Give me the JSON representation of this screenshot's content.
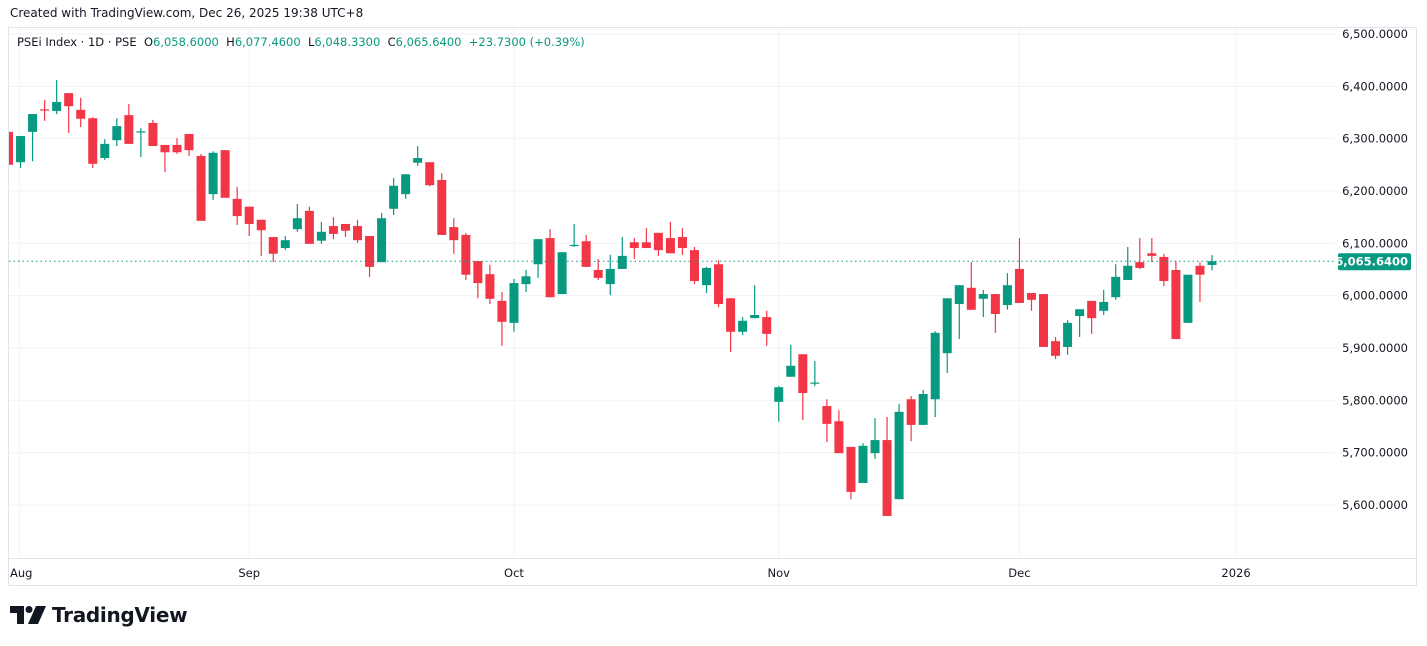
{
  "header": {
    "created": "Created with TradingView.com, Dec 26, 2025 19:38 UTC+8"
  },
  "legend": {
    "symbol": "PSEi Index · 1D · PSE",
    "open_label": "O",
    "open": "6,058.6000",
    "high_label": "H",
    "high": "6,077.4600",
    "low_label": "L",
    "low": "6,048.3300",
    "close_label": "C",
    "close": "6,065.6400",
    "change": "+23.7300 (+0.39%)"
  },
  "logo": {
    "text": "TradingView"
  },
  "colors": {
    "up": "#089981",
    "down": "#f23645",
    "grid": "#f0f3fa",
    "last_price": "#089981"
  },
  "chart_data": {
    "type": "candlestick",
    "title": "PSEi Index · 1D · PSE",
    "ylim": [
      5550,
      6510
    ],
    "y_ticks": [
      6500,
      6400,
      6300,
      6200,
      6100,
      6000,
      5900,
      5800,
      5700,
      5600
    ],
    "y_tick_labels": [
      "6,500.0000",
      "6,400.0000",
      "6,300.0000",
      "6,200.0000",
      "6,100.0000",
      "6,000.0000",
      "5,900.0000",
      "5,800.0000",
      "5,700.0000",
      "5,600.0000"
    ],
    "x_tick_labels": [
      {
        "label": "Aug",
        "index": 1
      },
      {
        "label": "Sep",
        "index": 20
      },
      {
        "label": "Oct",
        "index": 42
      },
      {
        "label": "Nov",
        "index": 64
      },
      {
        "label": "Dec",
        "index": 84
      },
      {
        "label": "2026",
        "index": 102
      }
    ],
    "last_price": 6065.64,
    "last_price_label": "6,065.6400",
    "ohlc": [
      [
        6313,
        6316,
        6248,
        6250
      ],
      [
        6255,
        6305,
        6244,
        6305
      ],
      [
        6313,
        6347,
        6257,
        6347
      ],
      [
        6356,
        6374,
        6334,
        6354
      ],
      [
        6353,
        6412,
        6347,
        6370
      ],
      [
        6387,
        6387,
        6311,
        6362
      ],
      [
        6355,
        6378,
        6322,
        6338
      ],
      [
        6339,
        6341,
        6244,
        6252
      ],
      [
        6263,
        6299,
        6259,
        6290
      ],
      [
        6297,
        6339,
        6286,
        6324
      ],
      [
        6345,
        6366,
        6290,
        6290
      ],
      [
        6312,
        6320,
        6265,
        6314
      ],
      [
        6330,
        6336,
        6286,
        6286
      ],
      [
        6288,
        6288,
        6236,
        6274
      ],
      [
        6288,
        6301,
        6271,
        6274
      ],
      [
        6309,
        6309,
        6267,
        6278
      ],
      [
        6267,
        6271,
        6143,
        6143
      ],
      [
        6194,
        6276,
        6183,
        6273
      ],
      [
        6278,
        6278,
        6187,
        6187
      ],
      [
        6185,
        6208,
        6135,
        6152
      ],
      [
        6170,
        6170,
        6114,
        6137
      ],
      [
        6145,
        6145,
        6076,
        6125
      ],
      [
        6112,
        6112,
        6064,
        6080
      ],
      [
        6091,
        6114,
        6087,
        6106
      ],
      [
        6127,
        6175,
        6122,
        6148
      ],
      [
        6162,
        6170,
        6099,
        6099
      ],
      [
        6105,
        6141,
        6099,
        6122
      ],
      [
        6133,
        6150,
        6108,
        6118
      ],
      [
        6137,
        6137,
        6112,
        6124
      ],
      [
        6133,
        6145,
        6101,
        6106
      ],
      [
        6114,
        6114,
        6036,
        6055
      ],
      [
        6064,
        6158,
        6064,
        6148
      ],
      [
        6166,
        6225,
        6154,
        6210
      ],
      [
        6194,
        6232,
        6185,
        6232
      ],
      [
        6254,
        6286,
        6248,
        6263
      ],
      [
        6255,
        6255,
        6209,
        6211
      ],
      [
        6221,
        6234,
        6116,
        6116
      ],
      [
        6131,
        6148,
        6080,
        6106
      ],
      [
        6116,
        6120,
        6030,
        6040
      ],
      [
        6066,
        6066,
        5995,
        6024
      ],
      [
        6041,
        6059,
        5984,
        5994
      ],
      [
        5990,
        6007,
        5904,
        5950
      ],
      [
        5948,
        6032,
        5931,
        6024
      ],
      [
        6022,
        6049,
        6007,
        6037
      ],
      [
        6060,
        6108,
        6034,
        6108
      ],
      [
        6110,
        6127,
        5997,
        5997
      ],
      [
        6003,
        6083,
        6003,
        6083
      ],
      [
        6095,
        6137,
        6093,
        6097
      ],
      [
        6104,
        6116,
        6055,
        6055
      ],
      [
        6049,
        6070,
        6030,
        6034
      ],
      [
        6022,
        6078,
        6001,
        6051
      ],
      [
        6051,
        6112,
        6051,
        6076
      ],
      [
        6102,
        6110,
        6070,
        6091
      ],
      [
        6102,
        6129,
        6091,
        6091
      ],
      [
        6120,
        6120,
        6076,
        6087
      ],
      [
        6110,
        6141,
        6081,
        6081
      ],
      [
        6112,
        6129,
        6078,
        6091
      ],
      [
        6087,
        6093,
        6022,
        6028
      ],
      [
        6020,
        6055,
        6005,
        6053
      ],
      [
        6060,
        6068,
        5978,
        5984
      ],
      [
        5995,
        5995,
        5892,
        5931
      ],
      [
        5931,
        5959,
        5925,
        5952
      ],
      [
        5957,
        6020,
        5957,
        5963
      ],
      [
        5959,
        5971,
        5904,
        5927
      ],
      [
        5797,
        5827,
        5759,
        5825
      ],
      [
        5845,
        5906,
        5845,
        5866
      ],
      [
        5888,
        5888,
        5762,
        5814
      ],
      [
        5832,
        5875,
        5827,
        5834
      ],
      [
        5789,
        5802,
        5720,
        5755
      ],
      [
        5760,
        5781,
        5699,
        5699
      ],
      [
        5711,
        5711,
        5611,
        5625
      ],
      [
        5642,
        5718,
        5642,
        5713
      ],
      [
        5699,
        5766,
        5688,
        5724
      ],
      [
        5724,
        5768,
        5579,
        5579
      ],
      [
        5611,
        5793,
        5611,
        5778
      ],
      [
        5802,
        5808,
        5722,
        5753
      ],
      [
        5753,
        5820,
        5753,
        5812
      ],
      [
        5802,
        5932,
        5768,
        5929
      ],
      [
        5890,
        5995,
        5852,
        5995
      ],
      [
        5984,
        6020,
        5917,
        6020
      ],
      [
        6015,
        6064,
        5973,
        5973
      ],
      [
        5994,
        6011,
        5959,
        6003
      ],
      [
        6003,
        6003,
        5929,
        5965
      ],
      [
        5982,
        6043,
        5973,
        6020
      ],
      [
        6051,
        6110,
        5986,
        5986
      ],
      [
        6005,
        6005,
        5971,
        5992
      ],
      [
        6003,
        6003,
        5902,
        5902
      ],
      [
        5913,
        5921,
        5879,
        5885
      ],
      [
        5902,
        5953,
        5887,
        5948
      ],
      [
        5961,
        5974,
        5921,
        5974
      ],
      [
        5990,
        5990,
        5927,
        5957
      ],
      [
        5971,
        6011,
        5963,
        5988
      ],
      [
        5997,
        6060,
        5992,
        6036
      ],
      [
        6030,
        6093,
        6030,
        6057
      ],
      [
        6064,
        6110,
        6051,
        6053
      ],
      [
        6081,
        6110,
        6064,
        6076
      ],
      [
        6074,
        6080,
        6018,
        6028
      ],
      [
        6049,
        6066,
        5917,
        5917
      ],
      [
        5948,
        6040,
        5948,
        6040
      ],
      [
        6057,
        6064,
        5988,
        6040
      ],
      [
        6058.6,
        6077.46,
        6048.33,
        6065.64
      ]
    ]
  }
}
